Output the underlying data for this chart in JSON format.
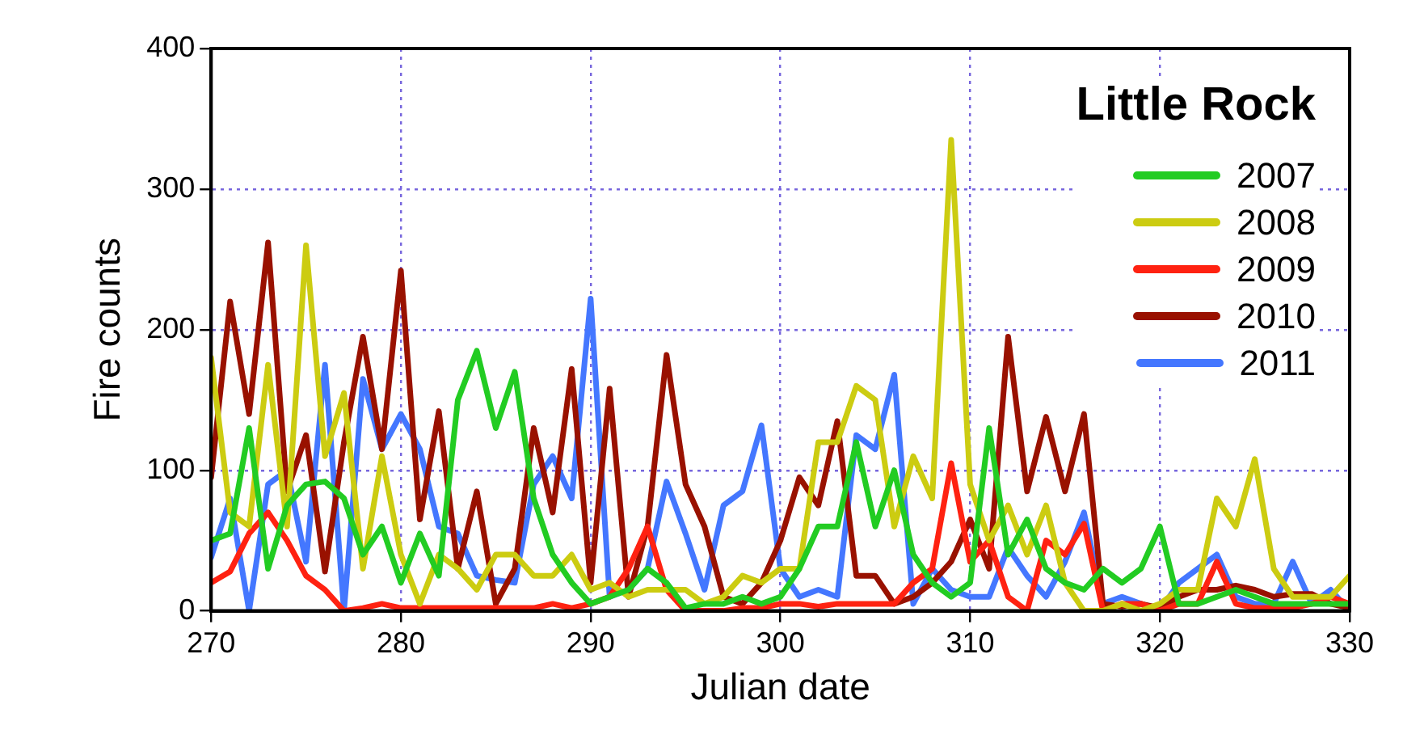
{
  "chart_data": {
    "type": "line",
    "xlabel": "Julian date",
    "ylabel": "Fire counts",
    "legend_title": "Little Rock",
    "legend": "top right",
    "grid": true,
    "marker": "none",
    "line_style": "solid",
    "x": [
      270,
      271,
      272,
      273,
      274,
      275,
      276,
      277,
      278,
      279,
      280,
      281,
      282,
      283,
      284,
      285,
      286,
      287,
      288,
      289,
      290,
      291,
      292,
      293,
      294,
      295,
      296,
      297,
      298,
      299,
      300,
      301,
      302,
      303,
      304,
      305,
      306,
      307,
      308,
      309,
      310,
      311,
      312,
      313,
      314,
      315,
      316,
      317,
      318,
      319,
      320,
      321,
      322,
      323,
      324,
      325,
      326,
      327,
      328,
      329,
      330
    ],
    "xlim": [
      270,
      330
    ],
    "xticks": [
      270,
      280,
      290,
      300,
      310,
      320,
      330
    ],
    "ylim": [
      0,
      400
    ],
    "yticks": [
      0,
      100,
      200,
      300,
      400
    ],
    "series": [
      {
        "name": "2007",
        "color": "#22cc22",
        "values": [
          50,
          55,
          130,
          30,
          75,
          90,
          92,
          80,
          40,
          60,
          20,
          55,
          25,
          150,
          185,
          130,
          170,
          80,
          40,
          20,
          5,
          10,
          15,
          30,
          20,
          2,
          5,
          5,
          10,
          5,
          10,
          30,
          60,
          60,
          120,
          60,
          100,
          40,
          20,
          10,
          20,
          130,
          40,
          65,
          30,
          20,
          15,
          30,
          20,
          30,
          60,
          5,
          5,
          10,
          15,
          10,
          5,
          5,
          5,
          5,
          5
        ]
      },
      {
        "name": "2008",
        "color": "#cccc11",
        "values": [
          180,
          70,
          60,
          175,
          60,
          260,
          110,
          155,
          30,
          110,
          40,
          5,
          40,
          30,
          15,
          40,
          40,
          25,
          25,
          40,
          15,
          20,
          10,
          15,
          15,
          15,
          5,
          10,
          25,
          20,
          30,
          30,
          120,
          120,
          160,
          150,
          60,
          110,
          80,
          335,
          90,
          50,
          75,
          40,
          75,
          20,
          0,
          0,
          5,
          0,
          5,
          15,
          15,
          80,
          60,
          108,
          30,
          10,
          10,
          10,
          25
        ]
      },
      {
        "name": "2009",
        "color": "#ff2211",
        "values": [
          20,
          28,
          55,
          70,
          50,
          25,
          15,
          0,
          2,
          5,
          2,
          2,
          2,
          2,
          2,
          2,
          2,
          2,
          5,
          2,
          5,
          10,
          30,
          60,
          15,
          0,
          0,
          0,
          2,
          2,
          5,
          5,
          3,
          5,
          5,
          5,
          5,
          20,
          30,
          105,
          35,
          50,
          10,
          0,
          50,
          40,
          62,
          0,
          5,
          5,
          0,
          5,
          5,
          35,
          5,
          2,
          2,
          2,
          5,
          10,
          5
        ]
      },
      {
        "name": "2010",
        "color": "#991100",
        "values": [
          95,
          220,
          140,
          262,
          85,
          125,
          28,
          120,
          195,
          115,
          242,
          65,
          142,
          30,
          85,
          5,
          30,
          130,
          70,
          172,
          20,
          158,
          10,
          60,
          182,
          90,
          60,
          10,
          5,
          20,
          50,
          95,
          75,
          135,
          25,
          25,
          5,
          10,
          20,
          35,
          65,
          30,
          195,
          85,
          138,
          85,
          140,
          5,
          3,
          5,
          2,
          10,
          15,
          15,
          18,
          15,
          10,
          12,
          12,
          5,
          2
        ]
      },
      {
        "name": "2011",
        "color": "#4477ff",
        "values": [
          38,
          80,
          0,
          90,
          100,
          35,
          175,
          0,
          165,
          115,
          140,
          115,
          60,
          55,
          25,
          22,
          20,
          90,
          110,
          80,
          222,
          10,
          15,
          30,
          92,
          55,
          15,
          75,
          85,
          132,
          30,
          10,
          15,
          10,
          125,
          115,
          168,
          5,
          30,
          15,
          10,
          10,
          45,
          25,
          10,
          35,
          70,
          5,
          10,
          5,
          0,
          20,
          30,
          40,
          10,
          5,
          5,
          35,
          5,
          15,
          0
        ]
      }
    ]
  }
}
